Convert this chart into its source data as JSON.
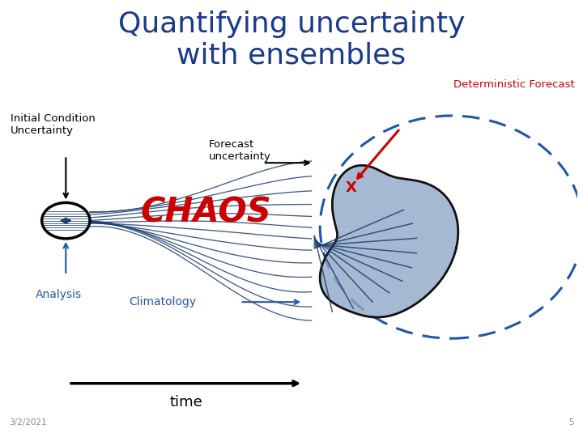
{
  "title": "Quantifying uncertainty\nwith ensembles",
  "title_color": "#1a3a8a",
  "title_fontsize": 26,
  "bg_color": "#ffffff",
  "label_initial_condition": "Initial Condition\nUncertainty",
  "label_forecast_uncertainty": "Forecast\nuncertainty",
  "label_deterministic": "Deterministic Forecast",
  "label_chaos": "CHAOS",
  "label_analysis": "Analysis",
  "label_climatology": "Climatology",
  "label_time": "time",
  "date_label": "3/2/2021",
  "page_num": "5",
  "dark_blue": "#1f3f6e",
  "blob_fill": "#8fa8c8",
  "blob_edge": "#111111",
  "dashed_ellipse_color": "#2255aa",
  "red_color": "#cc0000",
  "analysis_color": "#2255aa",
  "climatology_color": "#2255aa",
  "line_color": "#1f3f6e"
}
